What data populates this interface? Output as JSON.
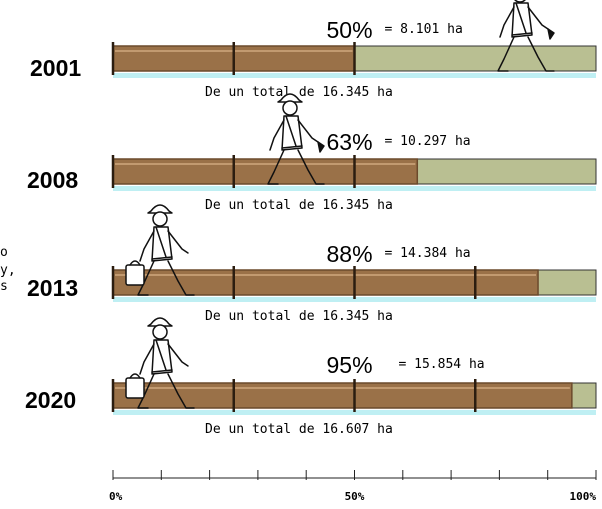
{
  "colors": {
    "filled": "#9a7148",
    "filled_dark": "#6b4a2c",
    "remaining": "#b9bf92",
    "underline": "#bfeff3",
    "joint": "#2b1d10"
  },
  "side_fragments": [
    "o",
    "y,",
    "s"
  ],
  "chart_data": {
    "type": "bar",
    "orientation": "horizontal",
    "categories": [
      "2001",
      "2008",
      "2013",
      "2020"
    ],
    "values": [
      50,
      63,
      88,
      95
    ],
    "unit": "%",
    "xlim": [
      0,
      100
    ],
    "xticks": [
      0,
      10,
      20,
      30,
      40,
      50,
      60,
      70,
      80,
      90,
      100
    ],
    "xtick_labels": [
      "0%",
      "50%",
      "100%"
    ],
    "rows": [
      {
        "year": "2001",
        "percent": 50,
        "percent_label": "50%",
        "hectares_label": "= 8.101 ha",
        "total_label": "De un  total de 16.345 ha",
        "worker_icon": "worker-icon"
      },
      {
        "year": "2008",
        "percent": 63,
        "percent_label": "63%",
        "hectares_label": "= 10.297 ha",
        "total_label": "De un  total de 16.345 ha",
        "worker_icon": "worker-icon"
      },
      {
        "year": "2013",
        "percent": 88,
        "percent_label": "88%",
        "hectares_label": "= 14.384 ha",
        "total_label": "De un  total de 16.345 ha",
        "worker_icon": "worker-with-bag-icon"
      },
      {
        "year": "2020",
        "percent": 95,
        "percent_label": "95%",
        "hectares_label": "= 15.854 ha",
        "total_label": "De un  total de 16.607 ha",
        "worker_icon": "worker-with-bag-icon"
      }
    ]
  }
}
